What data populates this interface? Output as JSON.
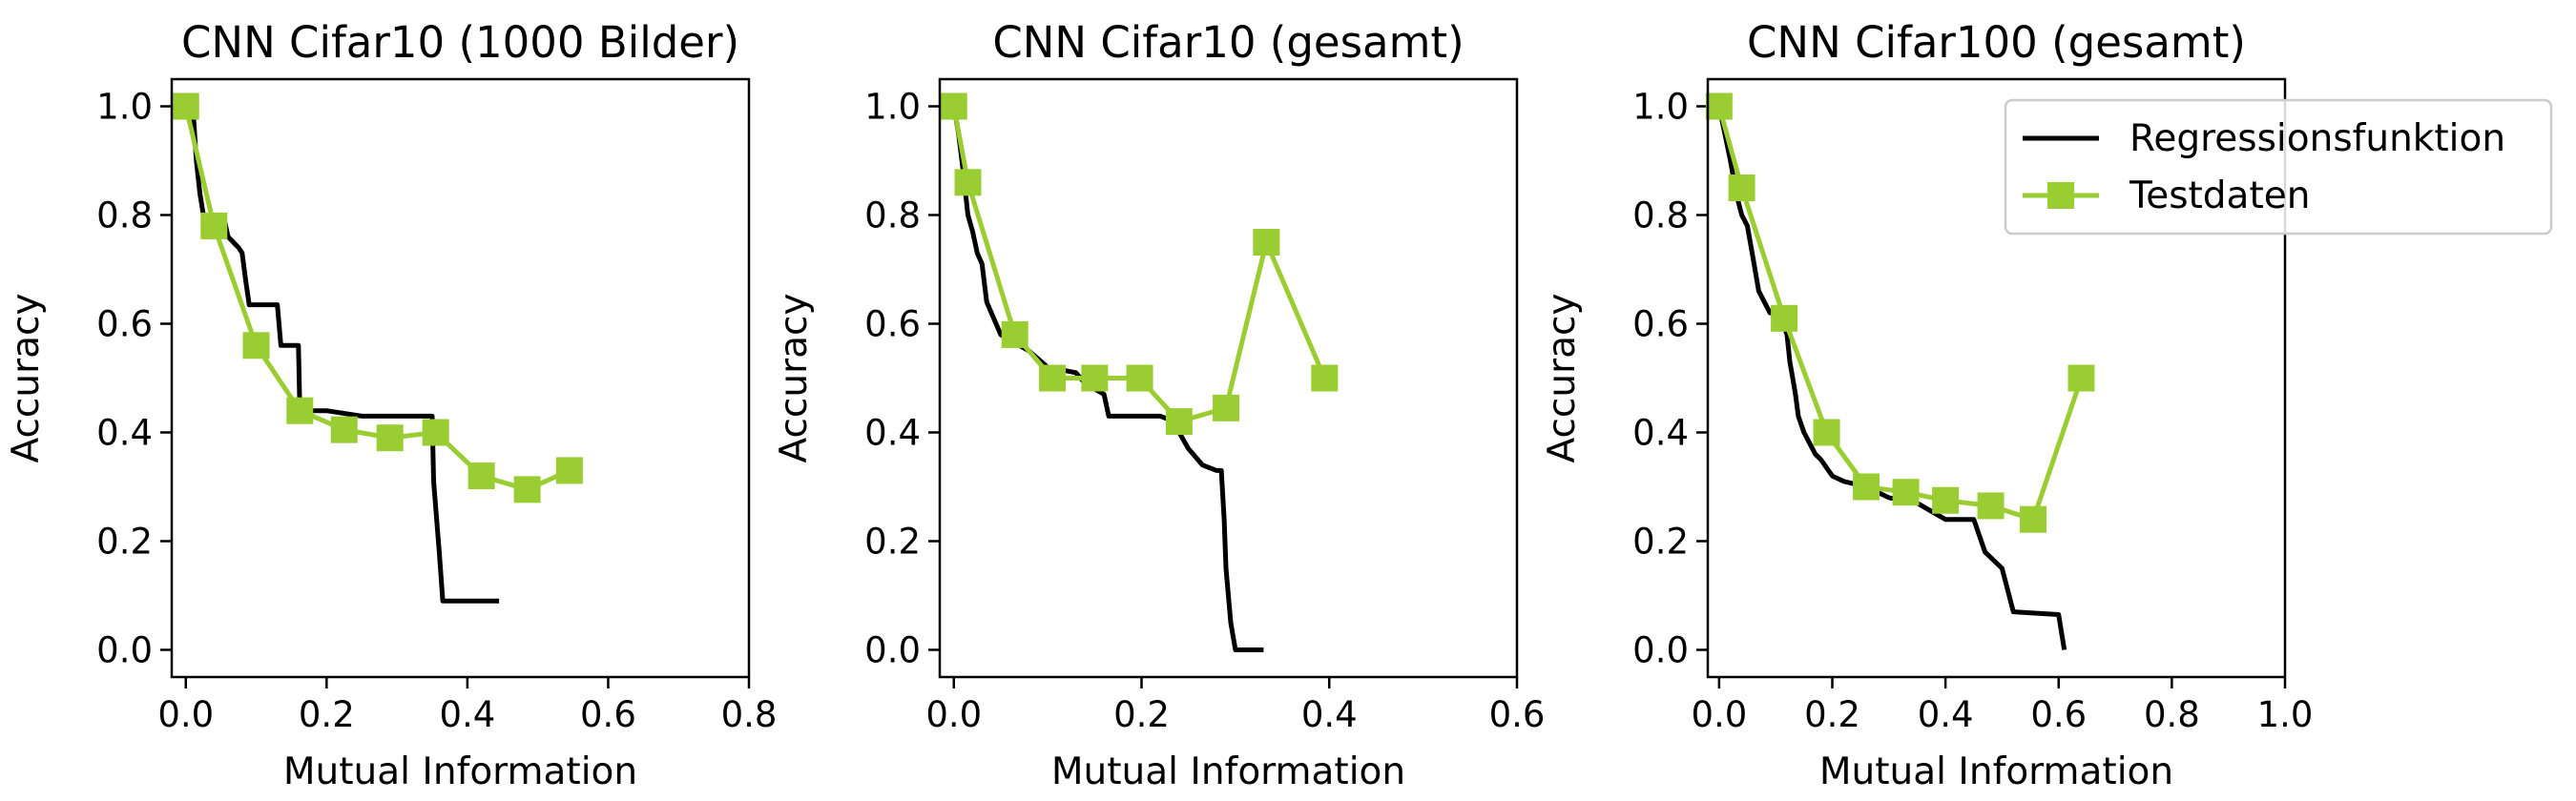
{
  "legend": {
    "regression_label": "Regressionsfunktion",
    "test_label": "Testdaten"
  },
  "colors": {
    "regression": "#000000",
    "test": "#9acd32"
  },
  "chart_data": [
    {
      "type": "line",
      "title": "CNN Cifar10 (1000 Bilder)",
      "xlabel": "Mutual Information",
      "ylabel": "Accuracy",
      "xlim": [
        -0.02,
        0.8
      ],
      "ylim": [
        -0.05,
        1.05
      ],
      "xticks": [
        0.0,
        0.2,
        0.4,
        0.6,
        0.8
      ],
      "xtick_labels": [
        "0.0",
        "0.2",
        "0.4",
        "0.6",
        "0.8"
      ],
      "yticks": [
        0.0,
        0.2,
        0.4,
        0.6,
        0.8,
        1.0
      ],
      "ytick_labels": [
        "0.0",
        "0.2",
        "0.4",
        "0.6",
        "0.8",
        "1.0"
      ],
      "legend_position": "",
      "series": [
        {
          "name": "Regressionsfunktion",
          "style": "step",
          "x": [
            0.0,
            0.01,
            0.012,
            0.015,
            0.02,
            0.025,
            0.03,
            0.055,
            0.06,
            0.075,
            0.08,
            0.085,
            0.09,
            0.13,
            0.135,
            0.16,
            0.162,
            0.2,
            0.25,
            0.35,
            0.352,
            0.36,
            0.365,
            0.445
          ],
          "y": [
            1.0,
            1.0,
            0.96,
            0.9,
            0.84,
            0.8,
            0.79,
            0.79,
            0.76,
            0.74,
            0.73,
            0.68,
            0.635,
            0.635,
            0.56,
            0.56,
            0.44,
            0.44,
            0.43,
            0.43,
            0.31,
            0.18,
            0.09,
            0.09
          ]
        },
        {
          "name": "Testdaten",
          "style": "line-marker",
          "marker": "square",
          "x": [
            0.0,
            0.04,
            0.1,
            0.162,
            0.225,
            0.29,
            0.355,
            0.42,
            0.485,
            0.545
          ],
          "y": [
            1.0,
            0.78,
            0.56,
            0.44,
            0.405,
            0.39,
            0.4,
            0.32,
            0.295,
            0.33
          ]
        }
      ]
    },
    {
      "type": "line",
      "title": "CNN Cifar10 (gesamt)",
      "xlabel": "Mutual Information",
      "ylabel": "Accuracy",
      "xlim": [
        -0.015,
        0.6
      ],
      "ylim": [
        -0.05,
        1.05
      ],
      "xticks": [
        0.0,
        0.2,
        0.4,
        0.6
      ],
      "xtick_labels": [
        "0.0",
        "0.2",
        "0.4",
        "0.6"
      ],
      "yticks": [
        0.0,
        0.2,
        0.4,
        0.6,
        0.8,
        1.0
      ],
      "ytick_labels": [
        "0.0",
        "0.2",
        "0.4",
        "0.6",
        "0.8",
        "1.0"
      ],
      "legend_position": "",
      "series": [
        {
          "name": "Regressionsfunktion",
          "style": "step",
          "x": [
            0.0,
            0.005,
            0.01,
            0.015,
            0.02,
            0.025,
            0.03,
            0.035,
            0.04,
            0.045,
            0.05,
            0.06,
            0.07,
            0.08,
            0.1,
            0.13,
            0.14,
            0.16,
            0.165,
            0.2,
            0.22,
            0.235,
            0.24,
            0.25,
            0.255,
            0.265,
            0.28,
            0.285,
            0.288,
            0.29,
            0.295,
            0.3,
            0.33
          ],
          "y": [
            1.0,
            0.95,
            0.88,
            0.8,
            0.77,
            0.73,
            0.71,
            0.64,
            0.62,
            0.6,
            0.58,
            0.57,
            0.56,
            0.55,
            0.52,
            0.51,
            0.49,
            0.47,
            0.43,
            0.43,
            0.43,
            0.42,
            0.4,
            0.37,
            0.36,
            0.34,
            0.33,
            0.33,
            0.24,
            0.15,
            0.05,
            0.0,
            0.0
          ]
        },
        {
          "name": "Testdaten",
          "style": "line-marker",
          "marker": "square",
          "x": [
            0.0,
            0.015,
            0.065,
            0.105,
            0.15,
            0.198,
            0.24,
            0.29,
            0.333,
            0.395
          ],
          "y": [
            1.0,
            0.86,
            0.58,
            0.5,
            0.5,
            0.5,
            0.42,
            0.445,
            0.75,
            0.5
          ]
        }
      ]
    },
    {
      "type": "line",
      "title": "CNN Cifar100 (gesamt)",
      "xlabel": "Mutual Information",
      "ylabel": "Accuracy",
      "xlim": [
        -0.02,
        1.0
      ],
      "ylim": [
        -0.05,
        1.05
      ],
      "xticks": [
        0.0,
        0.2,
        0.4,
        0.6,
        0.8,
        1.0
      ],
      "xtick_labels": [
        "0.0",
        "0.2",
        "0.4",
        "0.6",
        "0.8",
        "1.0"
      ],
      "yticks": [
        0.0,
        0.2,
        0.4,
        0.6,
        0.8,
        1.0
      ],
      "ytick_labels": [
        "0.0",
        "0.2",
        "0.4",
        "0.6",
        "0.8",
        "1.0"
      ],
      "legend_position": "top-right",
      "series": [
        {
          "name": "Regressionsfunktion",
          "style": "step",
          "x": [
            0.0,
            0.01,
            0.02,
            0.03,
            0.04,
            0.05,
            0.06,
            0.07,
            0.08,
            0.09,
            0.1,
            0.11,
            0.12,
            0.125,
            0.13,
            0.135,
            0.14,
            0.15,
            0.16,
            0.17,
            0.18,
            0.2,
            0.22,
            0.26,
            0.3,
            0.35,
            0.4,
            0.45,
            0.47,
            0.5,
            0.52,
            0.6,
            0.61
          ],
          "y": [
            1.0,
            0.95,
            0.9,
            0.84,
            0.8,
            0.78,
            0.72,
            0.66,
            0.64,
            0.62,
            0.63,
            0.61,
            0.58,
            0.53,
            0.5,
            0.47,
            0.43,
            0.4,
            0.38,
            0.36,
            0.35,
            0.32,
            0.31,
            0.3,
            0.28,
            0.27,
            0.24,
            0.24,
            0.18,
            0.15,
            0.07,
            0.065,
            0.0
          ]
        },
        {
          "name": "Testdaten",
          "style": "line-marker",
          "marker": "square",
          "x": [
            0.0,
            0.04,
            0.115,
            0.19,
            0.26,
            0.33,
            0.4,
            0.48,
            0.555,
            0.64
          ],
          "y": [
            1.0,
            0.85,
            0.61,
            0.4,
            0.3,
            0.29,
            0.275,
            0.265,
            0.24,
            0.5
          ]
        }
      ]
    }
  ]
}
